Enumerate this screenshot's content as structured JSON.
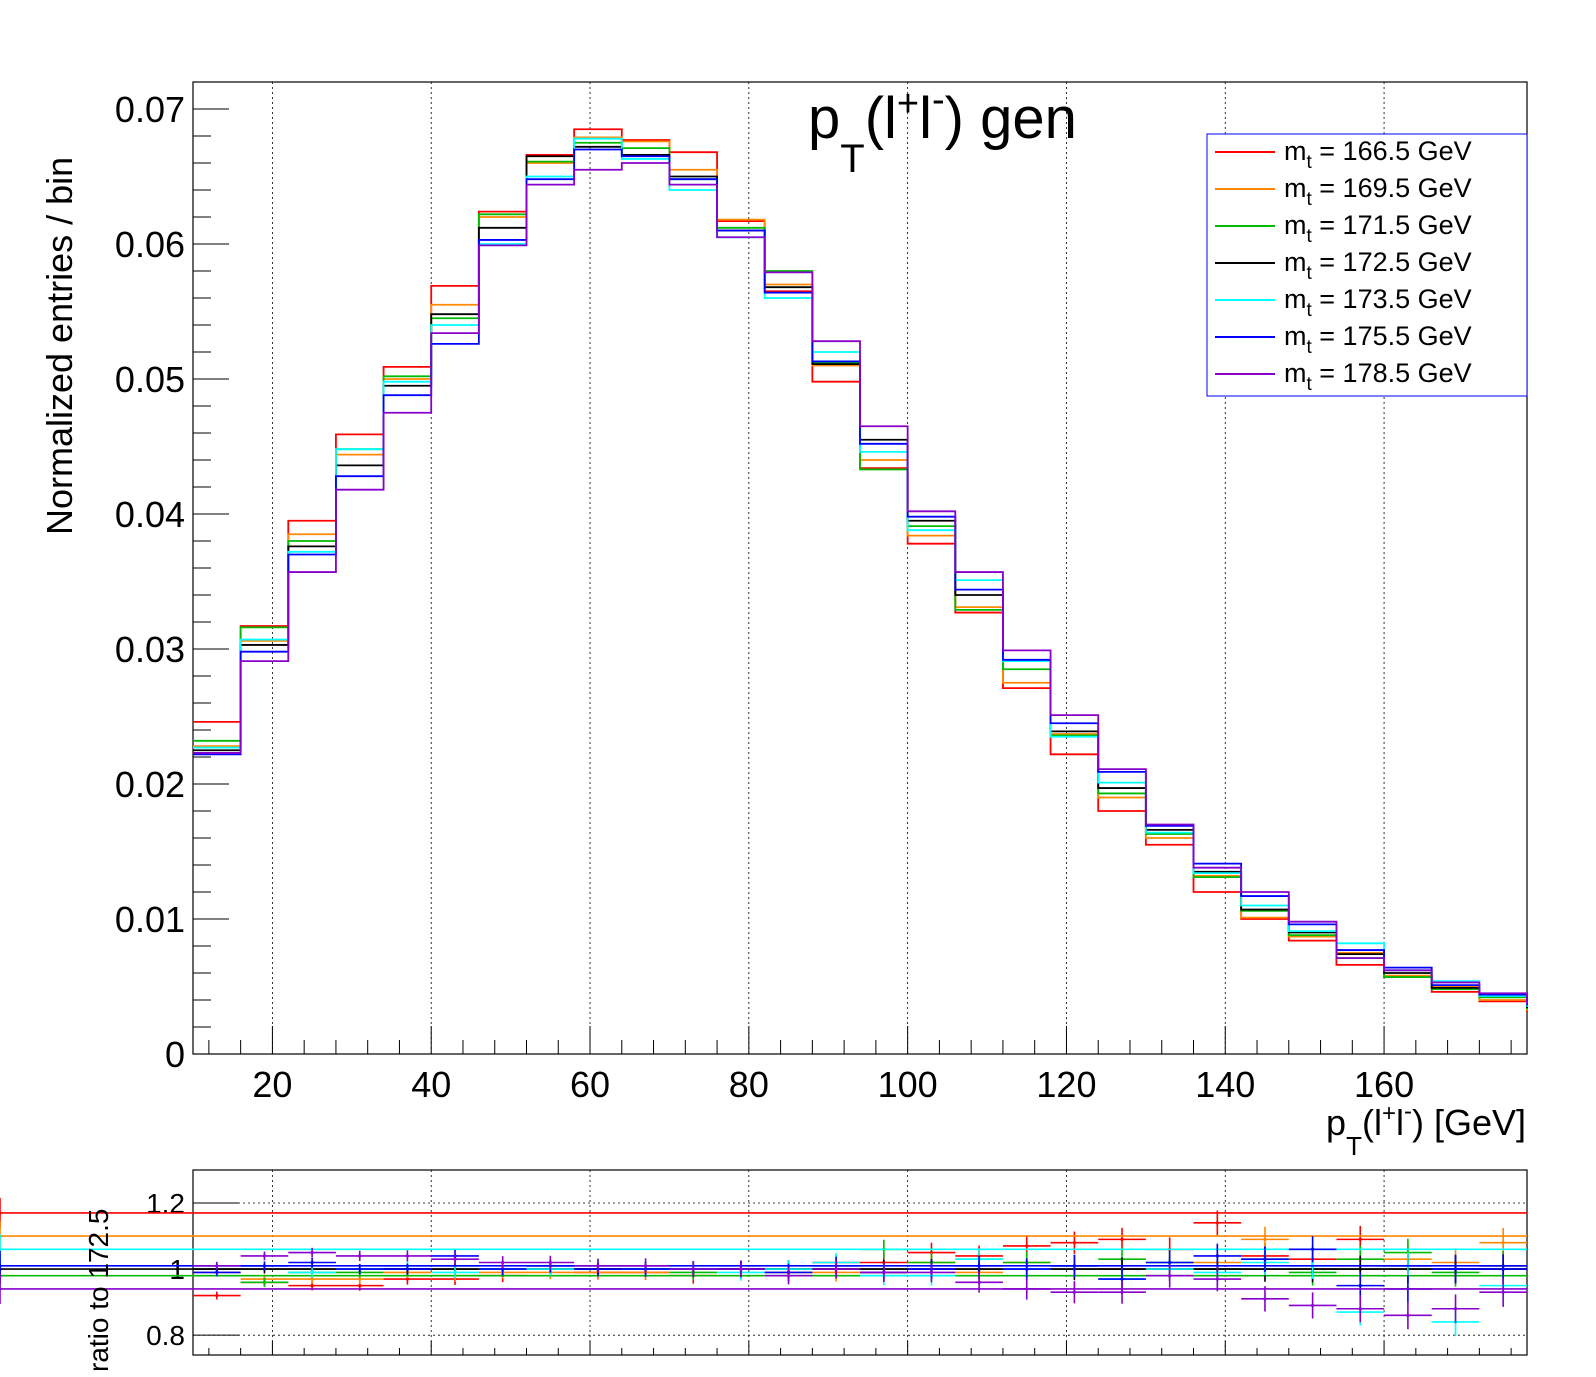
{
  "chart_data": [
    {
      "type": "line",
      "title": "p_T(l⁺l⁻) gen",
      "title_parts": {
        "p": "p",
        "sub_t": "T",
        "paren_open": "(l",
        "plus": "+",
        "l2": "l",
        "minus": "-",
        "close": ") gen"
      },
      "ylabel": "Normalized entries / bin",
      "xlabel_parts": {
        "p": "p",
        "sub_t": "T",
        "paren_open": "(l",
        "plus": "+",
        "l2": "l",
        "minus": "-",
        "close": ") [GeV]"
      },
      "xlim": [
        10,
        178
      ],
      "ylim": [
        0,
        0.072
      ],
      "x_ticks": [
        20,
        40,
        60,
        80,
        100,
        120,
        140,
        160
      ],
      "y_ticks": [
        0,
        0.01,
        0.02,
        0.03,
        0.04,
        0.05,
        0.06,
        0.07
      ],
      "y_tick_labels": [
        "0",
        "0.01",
        "0.02",
        "0.03",
        "0.04",
        "0.05",
        "0.06",
        "0.07"
      ],
      "grid": "vertical dotted",
      "legend_position": "top-right",
      "bin_edges": [
        10,
        16,
        22,
        28,
        34,
        40,
        46,
        52,
        58,
        64,
        70,
        76,
        82,
        88,
        94,
        100,
        106,
        112,
        118,
        124,
        130,
        136,
        142,
        148,
        154,
        160,
        166,
        172,
        178
      ],
      "series": [
        {
          "name": "m_t = 166.5 GeV",
          "mass_label": "= 166.5 GeV",
          "color": "#ff0000",
          "values": [
            0.0246,
            0.0317,
            0.0395,
            0.0459,
            0.0509,
            0.0569,
            0.0624,
            0.0666,
            0.0685,
            0.0677,
            0.0668,
            0.0617,
            0.0565,
            0.0498,
            0.0434,
            0.0378,
            0.0327,
            0.0271,
            0.0222,
            0.018,
            0.0155,
            0.012,
            0.01,
            0.0084,
            0.0066,
            0.0057,
            0.0046,
            0.0039,
            0.0031
          ]
        },
        {
          "name": "m_t = 169.5 GeV",
          "mass_label": "= 169.5 GeV",
          "color": "#ff8800",
          "values": [
            0.0228,
            0.0306,
            0.0385,
            0.0444,
            0.05,
            0.0555,
            0.062,
            0.066,
            0.0679,
            0.0676,
            0.0655,
            0.0618,
            0.057,
            0.051,
            0.044,
            0.0384,
            0.0331,
            0.0275,
            0.0237,
            0.019,
            0.016,
            0.0132,
            0.0101,
            0.0087,
            0.0075,
            0.0058,
            0.005,
            0.004,
            0.0032
          ]
        },
        {
          "name": "m_t = 171.5 GeV",
          "mass_label": "= 171.5 GeV",
          "color": "#00bb00",
          "values": [
            0.0232,
            0.0316,
            0.038,
            0.0448,
            0.0502,
            0.0545,
            0.0622,
            0.0661,
            0.0675,
            0.0671,
            0.0648,
            0.0612,
            0.058,
            0.0512,
            0.0433,
            0.0391,
            0.0329,
            0.0285,
            0.0236,
            0.0193,
            0.0163,
            0.0131,
            0.0106,
            0.0088,
            0.0071,
            0.0057,
            0.0048,
            0.0042,
            0.0033
          ]
        },
        {
          "name": "m_t = 172.5 GeV",
          "mass_label": "= 172.5 GeV",
          "color": "#000000",
          "values": [
            0.0225,
            0.0303,
            0.0376,
            0.0436,
            0.0495,
            0.0548,
            0.0612,
            0.0665,
            0.0672,
            0.0666,
            0.065,
            0.061,
            0.0568,
            0.0511,
            0.0455,
            0.0395,
            0.034,
            0.0291,
            0.0239,
            0.0197,
            0.0166,
            0.0135,
            0.0107,
            0.009,
            0.0074,
            0.006,
            0.0049,
            0.0043,
            0.0034
          ]
        },
        {
          "name": "m_t = 173.5 GeV",
          "mass_label": "= 173.5 GeV",
          "color": "#00ffff",
          "values": [
            0.0227,
            0.0307,
            0.0372,
            0.0448,
            0.0498,
            0.054,
            0.06,
            0.065,
            0.0678,
            0.0663,
            0.064,
            0.0605,
            0.056,
            0.052,
            0.0446,
            0.0388,
            0.0351,
            0.0291,
            0.0235,
            0.0201,
            0.0164,
            0.0134,
            0.011,
            0.0091,
            0.0082,
            0.0062,
            0.0054,
            0.0043,
            0.0035
          ]
        },
        {
          "name": "m_t = 175.5 GeV",
          "mass_label": "= 175.5 GeV",
          "color": "#0000ff",
          "values": [
            0.0222,
            0.0298,
            0.037,
            0.0428,
            0.0488,
            0.0526,
            0.0603,
            0.0648,
            0.067,
            0.0665,
            0.0648,
            0.061,
            0.0564,
            0.0513,
            0.0452,
            0.0398,
            0.0344,
            0.0292,
            0.0245,
            0.0209,
            0.0169,
            0.0141,
            0.0117,
            0.0096,
            0.0077,
            0.0064,
            0.0051,
            0.0044,
            0.0036
          ]
        },
        {
          "name": "m_t = 178.5 GeV",
          "mass_label": "= 178.5 GeV",
          "color": "#8800cc",
          "values": [
            0.0223,
            0.0291,
            0.0357,
            0.0418,
            0.0475,
            0.0534,
            0.0599,
            0.0644,
            0.0655,
            0.066,
            0.0644,
            0.0605,
            0.0579,
            0.0528,
            0.0465,
            0.0402,
            0.0357,
            0.0299,
            0.0251,
            0.0211,
            0.017,
            0.0138,
            0.012,
            0.0098,
            0.0071,
            0.0062,
            0.0053,
            0.0045,
            0.0037
          ]
        }
      ]
    },
    {
      "type": "scatter",
      "ylabel": "ratio to 172.5",
      "xlim": [
        10,
        178
      ],
      "ylim": [
        0.74,
        1.3
      ],
      "y_ticks": [
        0.8,
        1.0,
        1.2
      ],
      "y_tick_labels": [
        "0.8",
        "1",
        "1.2"
      ],
      "grid": "vertical and horizontal dotted",
      "bin_edges": [
        10,
        16,
        22,
        28,
        34,
        40,
        46,
        52,
        58,
        64,
        70,
        76,
        82,
        88,
        94,
        100,
        106,
        112,
        118,
        124,
        130,
        136,
        142,
        148,
        154,
        160,
        166,
        172,
        178
      ],
      "series": [
        {
          "name": "m_t = 166.5 GeV",
          "color": "#ff0000",
          "values": [
            0.92,
            0.96,
            0.95,
            0.95,
            0.97,
            0.97,
            0.98,
            1.0,
            0.99,
            0.99,
            0.98,
            1.0,
            1.0,
            1.02,
            1.02,
            1.05,
            1.04,
            1.07,
            1.08,
            1.09,
            1.06,
            1.14,
            1.04,
            1.03,
            1.09,
            1.01,
            1.0,
            1.01,
            1.17
          ]
        },
        {
          "name": "m_t = 169.5 GeV",
          "color": "#ff8800",
          "values": [
            0.99,
            0.97,
            0.97,
            0.97,
            0.99,
            0.98,
            0.99,
            0.99,
            0.99,
            0.99,
            1.0,
            1.0,
            0.99,
            0.99,
            0.99,
            1.02,
            0.99,
            1.02,
            1.01,
            1.0,
            1.0,
            1.02,
            1.09,
            1.0,
            1.01,
            1.03,
            1.02,
            1.08,
            1.1
          ]
        },
        {
          "name": "m_t = 171.5 GeV",
          "color": "#00bb00",
          "values": [
            1.0,
            0.96,
            0.99,
            0.99,
            1.0,
            1.01,
            1.0,
            1.01,
            1.0,
            1.0,
            0.99,
            1.0,
            1.0,
            1.0,
            1.06,
            1.02,
            1.03,
            1.02,
            1.01,
            1.03,
            1.02,
            1.0,
            1.03,
            0.99,
            1.03,
            1.05,
            0.99,
            1.01,
            0.98
          ]
        },
        {
          "name": "m_t = 172.5 GeV",
          "color": "#000000",
          "values": [
            1.0,
            1.0,
            1.0,
            1.0,
            1.0,
            1.0,
            1.0,
            1.0,
            1.0,
            1.0,
            1.0,
            1.0,
            1.0,
            1.0,
            1.0,
            1.0,
            1.0,
            1.0,
            1.0,
            1.0,
            1.0,
            1.0,
            1.0,
            1.0,
            1.0,
            1.0,
            1.0,
            1.0,
            1.0
          ]
        },
        {
          "name": "m_t = 173.5 GeV",
          "color": "#00ffff",
          "values": [
            1.01,
            1.01,
            0.99,
            1.0,
            1.01,
            0.99,
            1.0,
            1.0,
            1.01,
            1.0,
            1.0,
            0.99,
            1.0,
            1.02,
            0.98,
            0.98,
            1.03,
            1.0,
            1.01,
            0.97,
            1.0,
            0.99,
            1.02,
            1.01,
            0.87,
            1.01,
            0.84,
            0.95,
            1.06
          ]
        },
        {
          "name": "m_t = 175.5 GeV",
          "color": "#0000ff",
          "values": [
            0.99,
            1.01,
            1.02,
            1.0,
            1.0,
            1.04,
            1.0,
            1.01,
            1.0,
            1.0,
            1.0,
            1.0,
            0.99,
            1.01,
            0.99,
            1.0,
            1.01,
            1.0,
            1.01,
            0.97,
            1.02,
            1.04,
            1.03,
            1.06,
            0.95,
            0.94,
            1.0,
            1.0,
            1.01
          ]
        },
        {
          "name": "m_t = 178.5 GeV",
          "color": "#8800cc",
          "values": [
            1.01,
            1.04,
            1.05,
            1.04,
            1.04,
            1.03,
            1.02,
            1.02,
            1.01,
            1.01,
            1.0,
            1.0,
            0.98,
            1.0,
            0.99,
            0.99,
            0.96,
            0.94,
            0.93,
            0.93,
            0.98,
            0.97,
            0.91,
            0.89,
            0.88,
            0.86,
            0.88,
            0.93,
            0.94
          ]
        }
      ]
    }
  ],
  "legend_symbol_m": "m",
  "legend_symbol_t": "t"
}
